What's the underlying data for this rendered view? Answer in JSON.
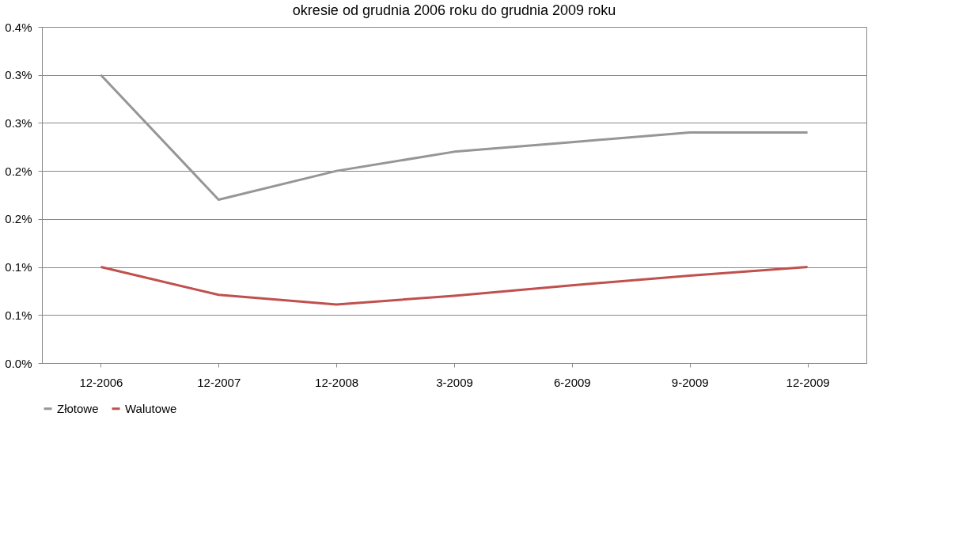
{
  "chart_data": {
    "type": "line",
    "title": "okresie od grudnia 2006 roku do grudnia 2009 roku",
    "categories": [
      "12-2006",
      "12-2007",
      "12-2008",
      "3-2009",
      "6-2009",
      "9-2009",
      "12-2009"
    ],
    "series": [
      {
        "name": "Złotowe",
        "color": "#969696",
        "values": [
          0.3,
          0.17,
          0.2,
          0.22,
          0.23,
          0.24,
          0.24
        ]
      },
      {
        "name": "Walutowe",
        "color": "#c0504d",
        "values": [
          0.1,
          0.071,
          0.061,
          0.07,
          0.081,
          0.091,
          0.1
        ]
      }
    ],
    "ylim": [
      0,
      0.35
    ],
    "yticks": [
      {
        "value": 0,
        "label": "0.0%"
      },
      {
        "value": 0.05,
        "label": "0.1%"
      },
      {
        "value": 0.1,
        "label": "0.1%"
      },
      {
        "value": 0.15,
        "label": "0.2%"
      },
      {
        "value": 0.2,
        "label": "0.2%"
      },
      {
        "value": 0.25,
        "label": "0.3%"
      },
      {
        "value": 0.3,
        "label": "0.3%"
      },
      {
        "value": 0.35,
        "label": "0.4%"
      }
    ],
    "grid": "y",
    "legend": "bottom",
    "marker": "none",
    "line_style": "solid"
  }
}
